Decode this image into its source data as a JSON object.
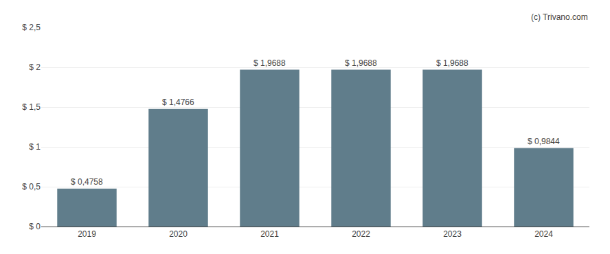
{
  "chart_data": {
    "type": "bar",
    "categories": [
      "2019",
      "2020",
      "2021",
      "2022",
      "2023",
      "2024"
    ],
    "values": [
      0.4758,
      1.4766,
      1.9688,
      1.9688,
      1.9688,
      0.9844
    ],
    "value_labels": [
      "$ 0,4758",
      "$ 1,4766",
      "$ 1,9688",
      "$ 1,9688",
      "$ 1,9688",
      "$ 0,9844"
    ],
    "data_labels": true,
    "color": "#607d8b",
    "ylim": [
      0,
      2.5
    ],
    "yticks": [
      {
        "value": 0,
        "label": "$ 0"
      },
      {
        "value": 0.5,
        "label": "$ 0,5"
      },
      {
        "value": 1.0,
        "label": "$ 1"
      },
      {
        "value": 1.5,
        "label": "$ 1,5"
      },
      {
        "value": 2.0,
        "label": "$ 2"
      },
      {
        "value": 2.5,
        "label": "$ 2,5"
      }
    ],
    "grid": true,
    "annotations": [
      "(c) Trivano.com"
    ]
  }
}
